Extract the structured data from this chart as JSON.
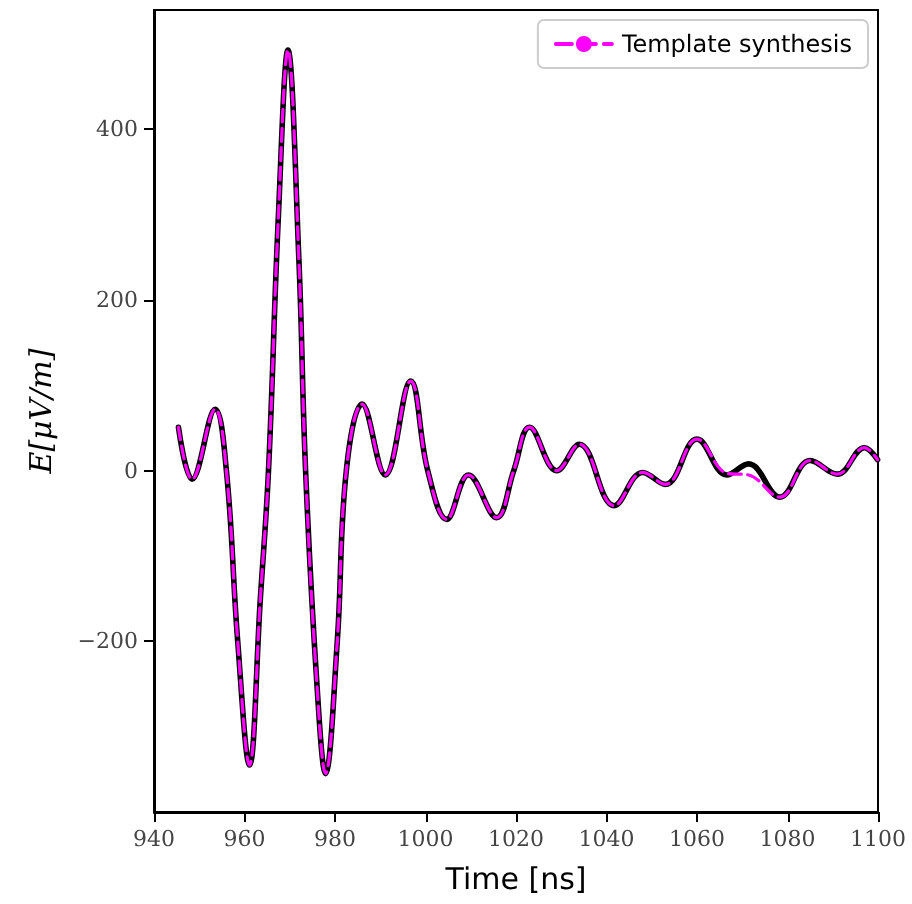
{
  "chart_data": {
    "type": "line",
    "xlabel": "Time [ns]",
    "ylabel": "E[μV/m]",
    "x": [
      945.4,
      948.4,
      953.5,
      956,
      958.5,
      961.1,
      963.5,
      965.3,
      967.5,
      969.6,
      972,
      973.5,
      976,
      977.9,
      980.5,
      982.5,
      986,
      991.1,
      996.7,
      1000.5,
      1004.7,
      1009.5,
      1015.7,
      1019.5,
      1023,
      1029,
      1034,
      1041.7,
      1048,
      1053,
      1060,
      1066.6,
      1071.4,
      1078.3,
      1085,
      1091,
      1097,
      1099.9
    ],
    "series": [
      {
        "color": "#000000",
        "line_style": "solid",
        "values": [
          51,
          -10,
          72,
          0,
          -200,
          -345,
          -150,
          0,
          300,
          493,
          250,
          0,
          -250,
          -355,
          -200,
          0,
          78,
          -5,
          105,
          0,
          -57,
          -5,
          -55,
          0,
          51,
          0,
          31,
          -41,
          -2,
          -16,
          37,
          -5,
          8,
          -31,
          12,
          -4,
          27,
          13
        ]
      },
      {
        "name": "Template synthesis",
        "color": "#ff00ff",
        "line_style": "dashed",
        "values": [
          51,
          -10,
          72,
          0,
          -200,
          -345,
          -150,
          0,
          300,
          493,
          250,
          0,
          -250,
          -355,
          -200,
          0,
          78,
          -5,
          105,
          0,
          -57,
          -5,
          -55,
          0,
          51,
          0,
          31,
          -41,
          -2,
          -16,
          37,
          -3,
          -5,
          -31,
          12,
          -4,
          27,
          13
        ]
      }
    ],
    "xlim": [
      940,
      1100
    ],
    "xticks": [
      940,
      960,
      980,
      1000,
      1020,
      1040,
      1060,
      1080,
      1100
    ],
    "ylim": [
      -400,
      540
    ],
    "yticks": [
      {
        "value": -200,
        "label": "−200"
      },
      0,
      200,
      400
    ],
    "grid": false,
    "legend": "top right",
    "marker": "none"
  }
}
